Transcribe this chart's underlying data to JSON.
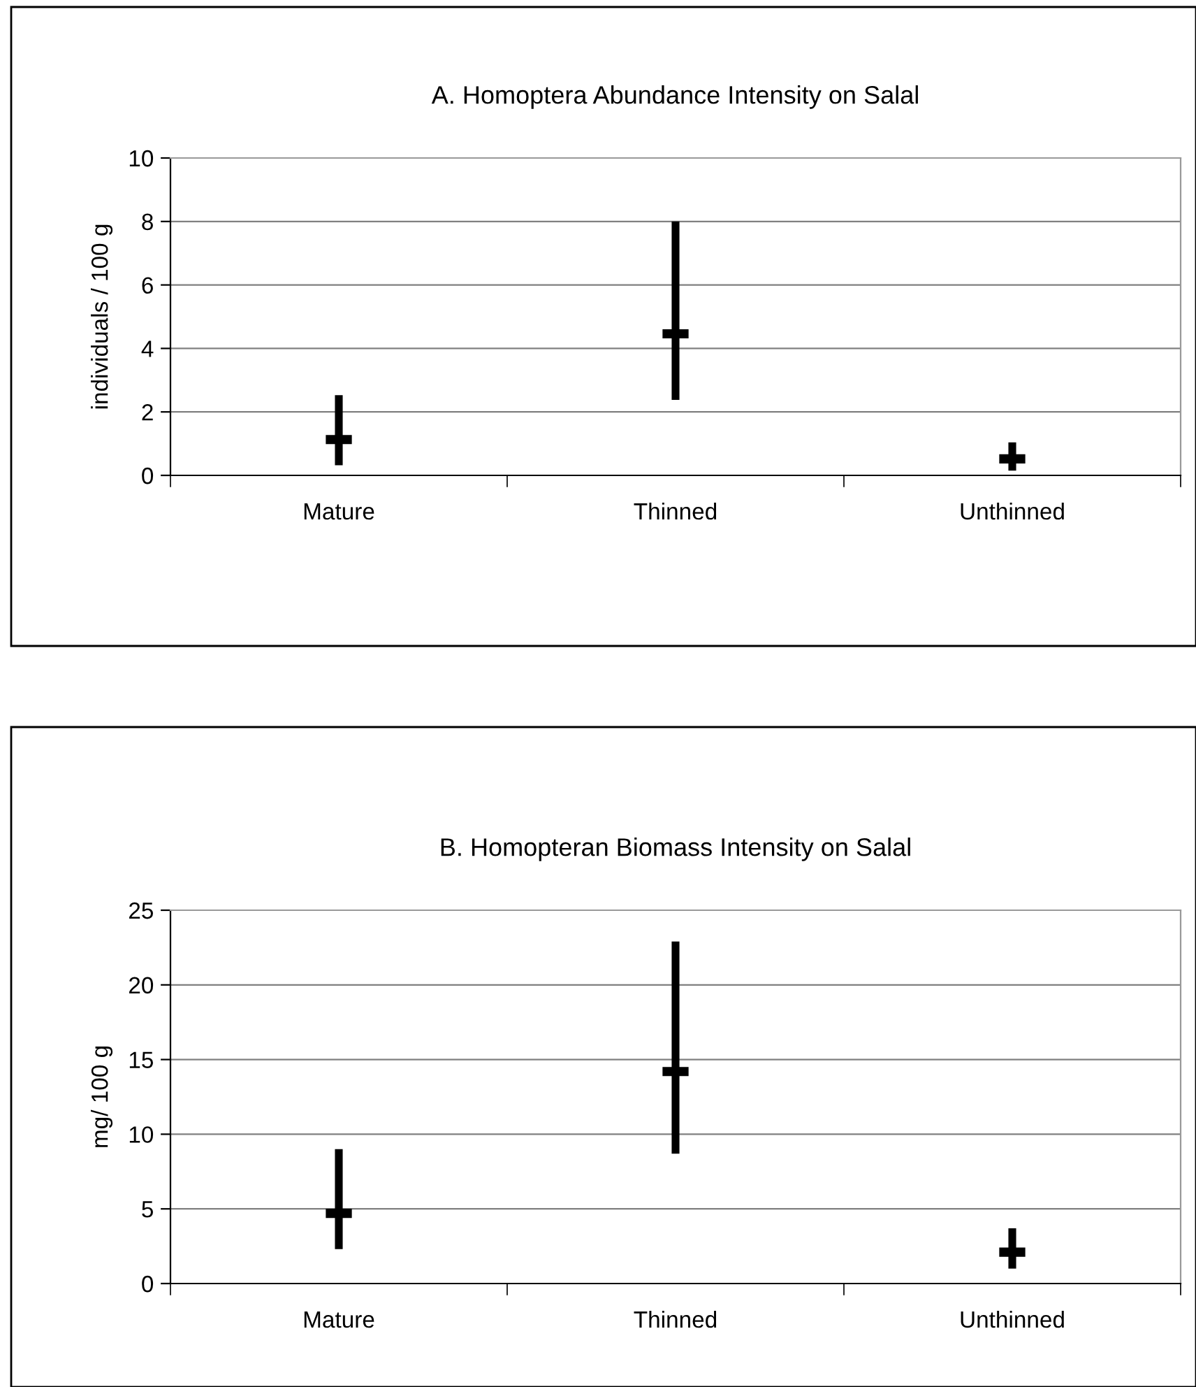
{
  "chart_data": [
    {
      "type": "scatter",
      "title": "A. Homoptera Abundance Intensity on Salal",
      "ylabel": "individuals / 100 g",
      "categories": [
        "Mature",
        "Thinned",
        "Unthinned"
      ],
      "series": [
        {
          "color": "#000000",
          "values": [
            1.13,
            4.46,
            0.52
          ],
          "errors": [
            [
              0.32,
              2.53
            ],
            [
              2.38,
              8.0
            ],
            [
              0.15,
              1.04
            ]
          ]
        }
      ],
      "ylim": [
        0,
        10
      ],
      "yticks": [
        0,
        2,
        4,
        6,
        8,
        10
      ],
      "grid": "y",
      "marker": "square",
      "legend": false
    },
    {
      "type": "scatter",
      "title": "B. Homopteran Biomass Intensity on Salal",
      "ylabel": "mg/ 100 g",
      "categories": [
        "Mature",
        "Thinned",
        "Unthinned"
      ],
      "series": [
        {
          "color": "#000000",
          "values": [
            4.7,
            14.2,
            2.1
          ],
          "errors": [
            [
              2.3,
              9.0
            ],
            [
              8.7,
              22.9
            ],
            [
              1.0,
              3.7
            ]
          ]
        }
      ],
      "ylim": [
        0,
        25
      ],
      "yticks": [
        0,
        5,
        10,
        15,
        20,
        25
      ],
      "grid": "y",
      "marker": "square",
      "legend": false
    }
  ]
}
